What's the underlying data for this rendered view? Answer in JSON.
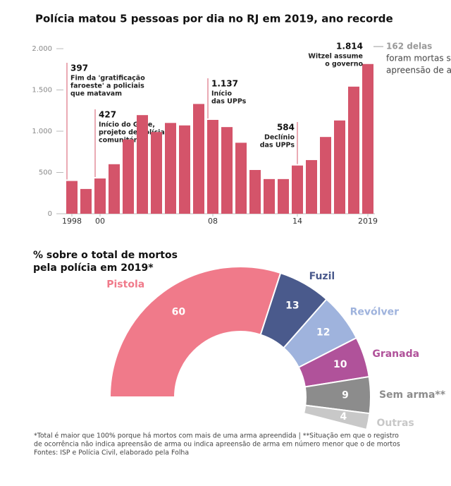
{
  "chart_data": [
    {
      "type": "bar",
      "title": "Polícia matou 5 pessoas por dia no RJ em 2019, ano recorde",
      "categories": [
        "1998",
        null,
        "00",
        null,
        null,
        null,
        null,
        null,
        null,
        null,
        "08",
        null,
        null,
        null,
        null,
        null,
        "14",
        null,
        null,
        null,
        null,
        "2019"
      ],
      "values": [
        397,
        300,
        427,
        600,
        900,
        1195,
        990,
        1100,
        1070,
        1330,
        1137,
        1050,
        860,
        530,
        420,
        420,
        584,
        650,
        930,
        1130,
        1540,
        1814
      ],
      "value_labels": [
        "397",
        null,
        "427",
        null,
        null,
        null,
        null,
        null,
        null,
        null,
        "1.137",
        null,
        null,
        null,
        null,
        null,
        "584",
        null,
        null,
        null,
        null,
        "1.814"
      ],
      "annotations": [
        [
          "Fim da 'gratificação",
          "faroeste' a policiais",
          "que matavam"
        ],
        null,
        [
          "Início do Gpae,",
          "projeto de polícia",
          "comunitária"
        ],
        null,
        null,
        null,
        null,
        null,
        null,
        null,
        [
          "Início",
          "das UPPs"
        ],
        null,
        null,
        null,
        null,
        null,
        [
          "Declínio",
          "das UPPs"
        ],
        null,
        null,
        null,
        null,
        [
          "Witzel assume",
          "o governo"
        ]
      ],
      "side_note": [
        "162 delas",
        "foram mortas sem",
        "apreensão de arma"
      ],
      "color": "#d4546a",
      "ylim": [
        0,
        2000
      ],
      "yticks": [
        0,
        {
          "value": 500,
          "label": "500"
        },
        {
          "value": 1000,
          "label": "1.000"
        },
        {
          "value": 1500,
          "label": "1.500"
        },
        {
          "value": 2000,
          "label": "2.000"
        }
      ],
      "grid": false
    },
    {
      "type": "semi-donut",
      "title": [
        "% sobre o total de mortos",
        "pela polícia em 2019*"
      ],
      "categories": [
        "Pistola",
        "Fuzil",
        "Revólver",
        "Granada",
        "Sem arma**",
        "Outras"
      ],
      "values": [
        60,
        13,
        12,
        10,
        9,
        4
      ],
      "colors": [
        "#f07a8a",
        "#4a5a8c",
        "#9fb3dd",
        "#b0529a",
        "#8c8c8c",
        "#c8c8c8"
      ],
      "footnotes": [
        "*Total é maior que 100% porque há mortos com mais de uma arma apreendida | **Situação em que o registro",
        "de ocorrência não indica apreensão de arma ou indica apreensão de arma em número menor que o de mortos",
        "Fontes: ISP e Polícia Civil, elaborado pela Folha"
      ]
    }
  ]
}
